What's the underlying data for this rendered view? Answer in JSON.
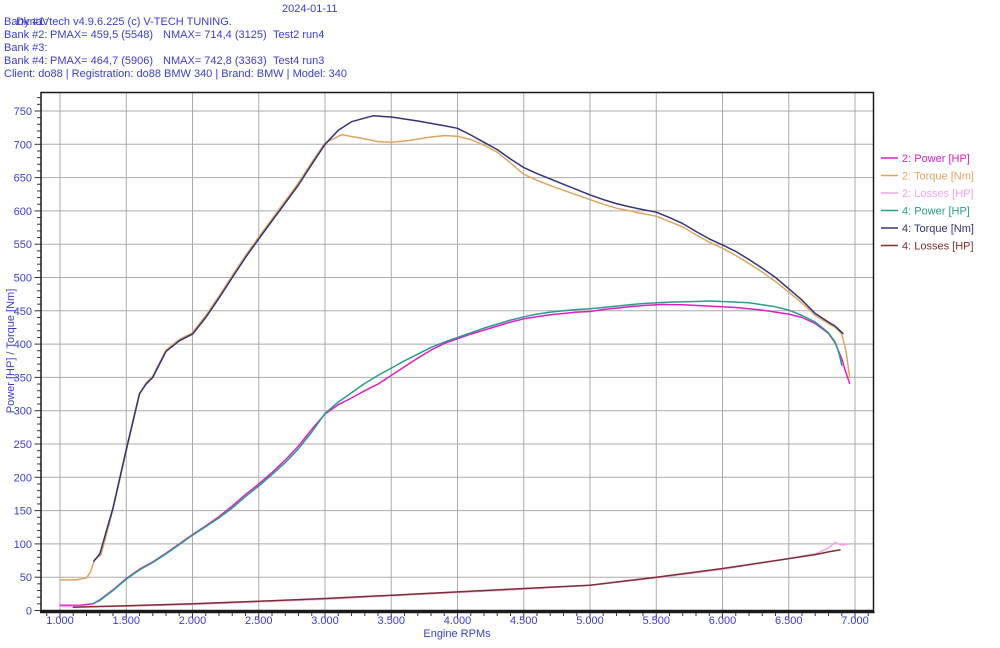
{
  "header": {
    "title": "DynaVtech v4.9.6.225 (c) V-TECH TUNING.",
    "date": "2024-01-11",
    "banks": [
      {
        "label": "Bank #1:",
        "pmax": "",
        "nmax": "",
        "test": ""
      },
      {
        "label": "Bank #2:",
        "pmax": "PMAX= 459,5 (5548)",
        "nmax": "NMAX= 714,4 (3125)",
        "test": "Test2 run4"
      },
      {
        "label": "Bank #3:",
        "pmax": "",
        "nmax": "",
        "test": ""
      },
      {
        "label": "Bank #4:",
        "pmax": "PMAX= 464,7 (5906)",
        "nmax": "NMAX= 742,8 (3363)",
        "test": "Test4 run3"
      }
    ],
    "client_line": "Client: do88 | Registration: do88 BMW 340 | Brand: BMW | Model: 340"
  },
  "colors": {
    "text": "#3C3CCC",
    "grid": "#ABABAB",
    "border": "#1A1A1A",
    "tick": "#333333",
    "background": "#FFFFFF"
  },
  "chart_data": {
    "type": "line",
    "title": "",
    "xlabel": "Engine RPMs",
    "ylabel": "Power [HP] / Torque [Nm]",
    "x_range": [
      857,
      7136
    ],
    "y_range": [
      0,
      777
    ],
    "grid": true,
    "legend_position": "right-outside",
    "x_minor_step": 100,
    "y_minor_step": 10,
    "x_ticks": [
      {
        "value": 1000,
        "label": "1.000"
      },
      {
        "value": 1500,
        "label": "1.500"
      },
      {
        "value": 2000,
        "label": "2.000"
      },
      {
        "value": 2500,
        "label": "2.500"
      },
      {
        "value": 3000,
        "label": "3.000"
      },
      {
        "value": 3500,
        "label": "3.500"
      },
      {
        "value": 4000,
        "label": "4.000"
      },
      {
        "value": 4500,
        "label": "4.500"
      },
      {
        "value": 5000,
        "label": "5.000"
      },
      {
        "value": 5500,
        "label": "5.500"
      },
      {
        "value": 6000,
        "label": "6.000"
      },
      {
        "value": 6500,
        "label": "6.500"
      },
      {
        "value": 7000,
        "label": "7.000"
      }
    ],
    "y_ticks": [
      {
        "value": 0,
        "label": "0"
      },
      {
        "value": 50,
        "label": "50"
      },
      {
        "value": 100,
        "label": "100"
      },
      {
        "value": 150,
        "label": "150"
      },
      {
        "value": 200,
        "label": "200"
      },
      {
        "value": 250,
        "label": "250"
      },
      {
        "value": 300,
        "label": "300"
      },
      {
        "value": 350,
        "label": "350"
      },
      {
        "value": 400,
        "label": "400"
      },
      {
        "value": 450,
        "label": "450"
      },
      {
        "value": 500,
        "label": "500"
      },
      {
        "value": 550,
        "label": "550"
      },
      {
        "value": 600,
        "label": "600"
      },
      {
        "value": 650,
        "label": "650"
      },
      {
        "value": 700,
        "label": "700"
      },
      {
        "value": 750,
        "label": "750"
      }
    ],
    "series": [
      {
        "name": "2: Power [HP]",
        "color": "#DC1EC8",
        "points": [
          [
            1000,
            8
          ],
          [
            1150,
            8
          ],
          [
            1250,
            10
          ],
          [
            1300,
            16
          ],
          [
            1400,
            31
          ],
          [
            1500,
            48
          ],
          [
            1600,
            62
          ],
          [
            1700,
            73
          ],
          [
            1800,
            86
          ],
          [
            1900,
            100
          ],
          [
            2000,
            114
          ],
          [
            2100,
            127
          ],
          [
            2200,
            141
          ],
          [
            2300,
            157
          ],
          [
            2400,
            174
          ],
          [
            2500,
            190
          ],
          [
            2600,
            207
          ],
          [
            2700,
            226
          ],
          [
            2800,
            247
          ],
          [
            2900,
            272
          ],
          [
            3000,
            295
          ],
          [
            3100,
            309
          ],
          [
            3200,
            319
          ],
          [
            3300,
            330
          ],
          [
            3400,
            340
          ],
          [
            3500,
            353
          ],
          [
            3600,
            366
          ],
          [
            3700,
            379
          ],
          [
            3800,
            391
          ],
          [
            3900,
            401
          ],
          [
            4000,
            408
          ],
          [
            4100,
            415
          ],
          [
            4200,
            421
          ],
          [
            4300,
            427
          ],
          [
            4400,
            433
          ],
          [
            4500,
            438
          ],
          [
            4600,
            441
          ],
          [
            4700,
            444
          ],
          [
            4800,
            446
          ],
          [
            4900,
            448
          ],
          [
            5000,
            449
          ],
          [
            5100,
            452
          ],
          [
            5200,
            454
          ],
          [
            5300,
            456
          ],
          [
            5400,
            458
          ],
          [
            5548,
            459.5
          ],
          [
            5700,
            459
          ],
          [
            5900,
            457
          ],
          [
            6100,
            455
          ],
          [
            6300,
            451
          ],
          [
            6500,
            445
          ],
          [
            6600,
            440
          ],
          [
            6700,
            431
          ],
          [
            6800,
            416
          ],
          [
            6850,
            402
          ],
          [
            6900,
            378
          ],
          [
            6930,
            358
          ],
          [
            6960,
            341
          ]
        ]
      },
      {
        "name": "2: Torque [Nm]",
        "color": "#DFA55F",
        "points": [
          [
            1000,
            46
          ],
          [
            1120,
            46
          ],
          [
            1200,
            49
          ],
          [
            1230,
            58
          ],
          [
            1260,
            76
          ],
          [
            1310,
            84
          ],
          [
            1400,
            152
          ],
          [
            1500,
            240
          ],
          [
            1600,
            324
          ],
          [
            1650,
            342
          ],
          [
            1700,
            352
          ],
          [
            1800,
            391
          ],
          [
            1900,
            407
          ],
          [
            2000,
            417
          ],
          [
            2100,
            443
          ],
          [
            2200,
            472
          ],
          [
            2300,
            503
          ],
          [
            2400,
            533
          ],
          [
            2500,
            561
          ],
          [
            2600,
            588
          ],
          [
            2700,
            615
          ],
          [
            2800,
            642
          ],
          [
            2900,
            673
          ],
          [
            3000,
            702
          ],
          [
            3125,
            714.4
          ],
          [
            3250,
            710
          ],
          [
            3400,
            704
          ],
          [
            3500,
            703
          ],
          [
            3650,
            706
          ],
          [
            3800,
            711
          ],
          [
            3900,
            713
          ],
          [
            4000,
            712
          ],
          [
            4100,
            707
          ],
          [
            4200,
            699
          ],
          [
            4300,
            688
          ],
          [
            4400,
            672
          ],
          [
            4500,
            655
          ],
          [
            4600,
            646
          ],
          [
            4700,
            638
          ],
          [
            4800,
            631
          ],
          [
            4900,
            624
          ],
          [
            5000,
            617
          ],
          [
            5100,
            610
          ],
          [
            5200,
            604
          ],
          [
            5300,
            600
          ],
          [
            5400,
            596
          ],
          [
            5500,
            592
          ],
          [
            5600,
            584
          ],
          [
            5700,
            576
          ],
          [
            5800,
            564
          ],
          [
            5900,
            553
          ],
          [
            6000,
            544
          ],
          [
            6100,
            533
          ],
          [
            6200,
            521
          ],
          [
            6300,
            508
          ],
          [
            6400,
            494
          ],
          [
            6500,
            478
          ],
          [
            6600,
            462
          ],
          [
            6700,
            443
          ],
          [
            6800,
            431
          ],
          [
            6850,
            425
          ],
          [
            6900,
            415
          ],
          [
            6930,
            392
          ],
          [
            6960,
            350
          ]
        ]
      },
      {
        "name": "2: Losses [HP]",
        "color": "#F4A3EC",
        "points": [
          [
            1000,
            6
          ],
          [
            1400,
            6
          ],
          [
            2000,
            9
          ],
          [
            2500,
            13
          ],
          [
            3000,
            17
          ],
          [
            3500,
            22
          ],
          [
            4000,
            27
          ],
          [
            4500,
            32
          ],
          [
            5000,
            38
          ],
          [
            5500,
            49
          ],
          [
            6000,
            62
          ],
          [
            6500,
            78
          ],
          [
            6700,
            85
          ],
          [
            6800,
            94
          ],
          [
            6850,
            102
          ],
          [
            6900,
            98
          ],
          [
            6960,
            100
          ]
        ]
      },
      {
        "name": "4: Power [HP]",
        "color": "#2B9B8B",
        "points": [
          [
            1255,
            11
          ],
          [
            1300,
            15
          ],
          [
            1400,
            30
          ],
          [
            1500,
            47
          ],
          [
            1600,
            61
          ],
          [
            1700,
            72
          ],
          [
            1800,
            85
          ],
          [
            1900,
            99
          ],
          [
            2000,
            113
          ],
          [
            2100,
            126
          ],
          [
            2200,
            139
          ],
          [
            2300,
            154
          ],
          [
            2400,
            171
          ],
          [
            2500,
            187
          ],
          [
            2600,
            204
          ],
          [
            2700,
            222
          ],
          [
            2800,
            243
          ],
          [
            2900,
            268
          ],
          [
            3000,
            296
          ],
          [
            3100,
            313
          ],
          [
            3200,
            327
          ],
          [
            3300,
            341
          ],
          [
            3400,
            353
          ],
          [
            3500,
            364
          ],
          [
            3600,
            375
          ],
          [
            3700,
            385
          ],
          [
            3800,
            395
          ],
          [
            3900,
            403
          ],
          [
            4000,
            410
          ],
          [
            4100,
            417
          ],
          [
            4200,
            424
          ],
          [
            4300,
            430
          ],
          [
            4400,
            436
          ],
          [
            4500,
            441
          ],
          [
            4600,
            445
          ],
          [
            4700,
            448
          ],
          [
            4800,
            450
          ],
          [
            4900,
            452
          ],
          [
            5000,
            453
          ],
          [
            5200,
            457
          ],
          [
            5400,
            461
          ],
          [
            5600,
            463
          ],
          [
            5800,
            464
          ],
          [
            5906,
            464.7
          ],
          [
            6000,
            464
          ],
          [
            6200,
            462
          ],
          [
            6300,
            459
          ],
          [
            6400,
            456
          ],
          [
            6500,
            451
          ],
          [
            6600,
            443
          ],
          [
            6700,
            433
          ],
          [
            6800,
            417
          ],
          [
            6850,
            403
          ],
          [
            6880,
            386
          ],
          [
            6900,
            368
          ]
        ]
      },
      {
        "name": "4: Torque [Nm]",
        "color": "#333377",
        "points": [
          [
            1255,
            74
          ],
          [
            1300,
            85
          ],
          [
            1400,
            154
          ],
          [
            1500,
            242
          ],
          [
            1600,
            326
          ],
          [
            1650,
            340
          ],
          [
            1700,
            350
          ],
          [
            1800,
            389
          ],
          [
            1900,
            405
          ],
          [
            2000,
            415
          ],
          [
            2100,
            440
          ],
          [
            2200,
            469
          ],
          [
            2300,
            500
          ],
          [
            2400,
            530
          ],
          [
            2500,
            558
          ],
          [
            2600,
            585
          ],
          [
            2700,
            612
          ],
          [
            2800,
            639
          ],
          [
            2900,
            670
          ],
          [
            3000,
            700
          ],
          [
            3100,
            721
          ],
          [
            3200,
            734
          ],
          [
            3363,
            742.8
          ],
          [
            3500,
            741
          ],
          [
            3700,
            735
          ],
          [
            3900,
            728
          ],
          [
            4000,
            724
          ],
          [
            4100,
            714
          ],
          [
            4200,
            703
          ],
          [
            4300,
            692
          ],
          [
            4400,
            678
          ],
          [
            4500,
            665
          ],
          [
            4600,
            656
          ],
          [
            4700,
            648
          ],
          [
            4800,
            640
          ],
          [
            4900,
            632
          ],
          [
            5000,
            624
          ],
          [
            5100,
            617
          ],
          [
            5200,
            611
          ],
          [
            5300,
            606
          ],
          [
            5400,
            602
          ],
          [
            5500,
            598
          ],
          [
            5600,
            590
          ],
          [
            5700,
            581
          ],
          [
            5800,
            569
          ],
          [
            5900,
            558
          ],
          [
            6000,
            549
          ],
          [
            6100,
            539
          ],
          [
            6200,
            527
          ],
          [
            6300,
            514
          ],
          [
            6400,
            500
          ],
          [
            6500,
            483
          ],
          [
            6600,
            466
          ],
          [
            6700,
            446
          ],
          [
            6800,
            433
          ],
          [
            6850,
            427
          ],
          [
            6909,
            416
          ]
        ]
      },
      {
        "name": "4: Losses [HP]",
        "color": "#7E3030",
        "points": [
          [
            1100,
            5
          ],
          [
            1500,
            7
          ],
          [
            2000,
            10
          ],
          [
            2500,
            14
          ],
          [
            3000,
            18
          ],
          [
            3500,
            23
          ],
          [
            4000,
            28
          ],
          [
            4500,
            33
          ],
          [
            5000,
            38
          ],
          [
            5500,
            50
          ],
          [
            6000,
            63
          ],
          [
            6500,
            78
          ],
          [
            6700,
            84
          ],
          [
            6800,
            88
          ],
          [
            6887,
            91
          ]
        ]
      }
    ]
  }
}
